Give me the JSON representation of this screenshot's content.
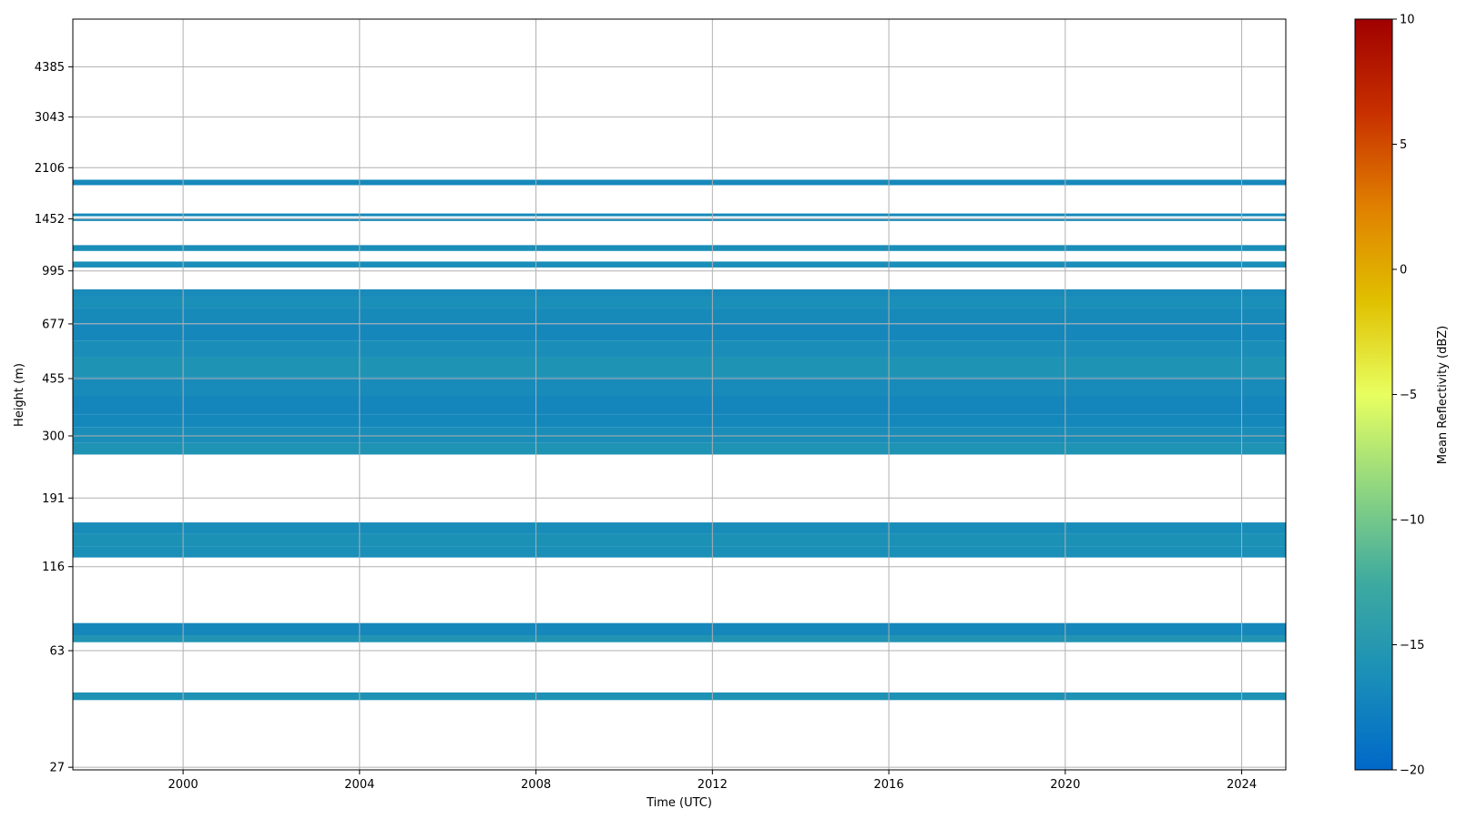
{
  "chart_data": {
    "type": "heatmap",
    "xlabel": "Time (UTC)",
    "ylabel": "Height (m)",
    "colorbar_label": "Mean Reflectivity (dBZ)",
    "xlim": [
      1997.5,
      2025.0
    ],
    "x_ticks": [
      2000,
      2004,
      2008,
      2012,
      2016,
      2020,
      2024
    ],
    "y_scale": "log",
    "ylim": [
      26.5,
      6200
    ],
    "y_ticks": [
      27,
      63,
      116,
      191,
      300,
      455,
      677,
      995,
      1452,
      2106,
      3043,
      4385
    ],
    "colorbar_range": [
      -20,
      10
    ],
    "colorbar_ticks": [
      -20,
      -15,
      -10,
      -5,
      0,
      5,
      10
    ],
    "colormap_stops": [
      "#0068c9",
      "#1a8fb8",
      "#3eaaa0",
      "#8fd680",
      "#e8ff60",
      "#e0c000",
      "#e08000",
      "#c83000",
      "#a00000"
    ],
    "grid": true,
    "bands": [
      {
        "h0": 44,
        "h1": 46.5,
        "dbz": -15.8
      },
      {
        "h0": 67,
        "h1": 70.5,
        "dbz": -15.5
      },
      {
        "h0": 70.5,
        "h1": 77,
        "dbz": -17.0
      },
      {
        "h0": 124,
        "h1": 134,
        "dbz": -16.2
      },
      {
        "h0": 134,
        "h1": 147,
        "dbz": -16.0
      },
      {
        "h0": 147,
        "h1": 160,
        "dbz": -16.4
      },
      {
        "h0": 262,
        "h1": 285,
        "dbz": -15.7
      },
      {
        "h0": 285,
        "h1": 320,
        "dbz": -16.3
      },
      {
        "h0": 320,
        "h1": 350,
        "dbz": -16.9
      },
      {
        "h0": 350,
        "h1": 400,
        "dbz": -17.1
      },
      {
        "h0": 400,
        "h1": 460,
        "dbz": -16.6
      },
      {
        "h0": 460,
        "h1": 530,
        "dbz": -15.7
      },
      {
        "h0": 530,
        "h1": 600,
        "dbz": -16.3
      },
      {
        "h0": 600,
        "h1": 680,
        "dbz": -17.0
      },
      {
        "h0": 680,
        "h1": 760,
        "dbz": -16.7
      },
      {
        "h0": 760,
        "h1": 820,
        "dbz": -16.2
      },
      {
        "h0": 820,
        "h1": 870,
        "dbz": -16.6
      },
      {
        "h0": 1020,
        "h1": 1065,
        "dbz": -16.3
      },
      {
        "h0": 1150,
        "h1": 1200,
        "dbz": -16.3
      },
      {
        "h0": 1430,
        "h1": 1460,
        "dbz": -16.8
      },
      {
        "h0": 1480,
        "h1": 1510,
        "dbz": -16.8
      },
      {
        "h0": 1855,
        "h1": 1930,
        "dbz": -16.8
      }
    ]
  }
}
